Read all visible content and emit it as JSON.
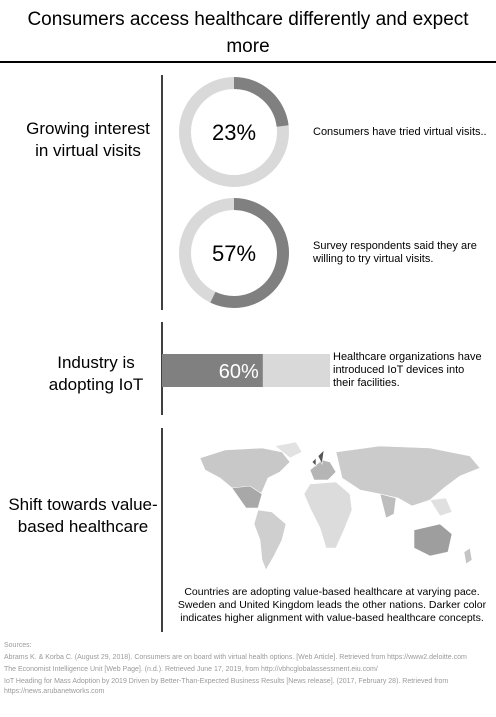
{
  "title": "Consumers access healthcare differently and expect more",
  "sections": [
    {
      "heading": "Growing interest in virtual visits",
      "stats": [
        {
          "value": 23,
          "value_label": "23%",
          "text": "Consumers have tried virtual visits.."
        },
        {
          "value": 57,
          "value_label": "57%",
          "text": "Survey respondents said they are willing to try virtual visits."
        }
      ]
    },
    {
      "heading": "Industry is adopting IoT",
      "stats": [
        {
          "value": 60,
          "value_label": "60%",
          "text": "Healthcare organizations have introduced IoT devices into their facilities."
        }
      ]
    },
    {
      "heading": "Shift towards value-based healthcare",
      "caption": "Countries are adopting value-based healthcare at varying pace. Sweden and United Kingdom leads the other nations. Darker color indicates higher alignment with value-based healthcare concepts."
    }
  ],
  "sources": {
    "heading": "Sources:",
    "items": [
      "Abrams K. & Korba C. (August 29, 2018). Consumers are on board with virtual health options. [Web Article]. Retrieved from https://www2.deloitte.com",
      "The Economist Intelligence Unit [Web Page]. (n.d.). Retrieved June 17, 2019, from http://vbhcglobalassessment.eiu.com/",
      "IoT Heading for Mass Adoption by 2019 Driven by Better-Than-Expected Business Results [News release]. (2017, February 28). Retrieved from https://news.arubanetworks.com"
    ]
  }
}
